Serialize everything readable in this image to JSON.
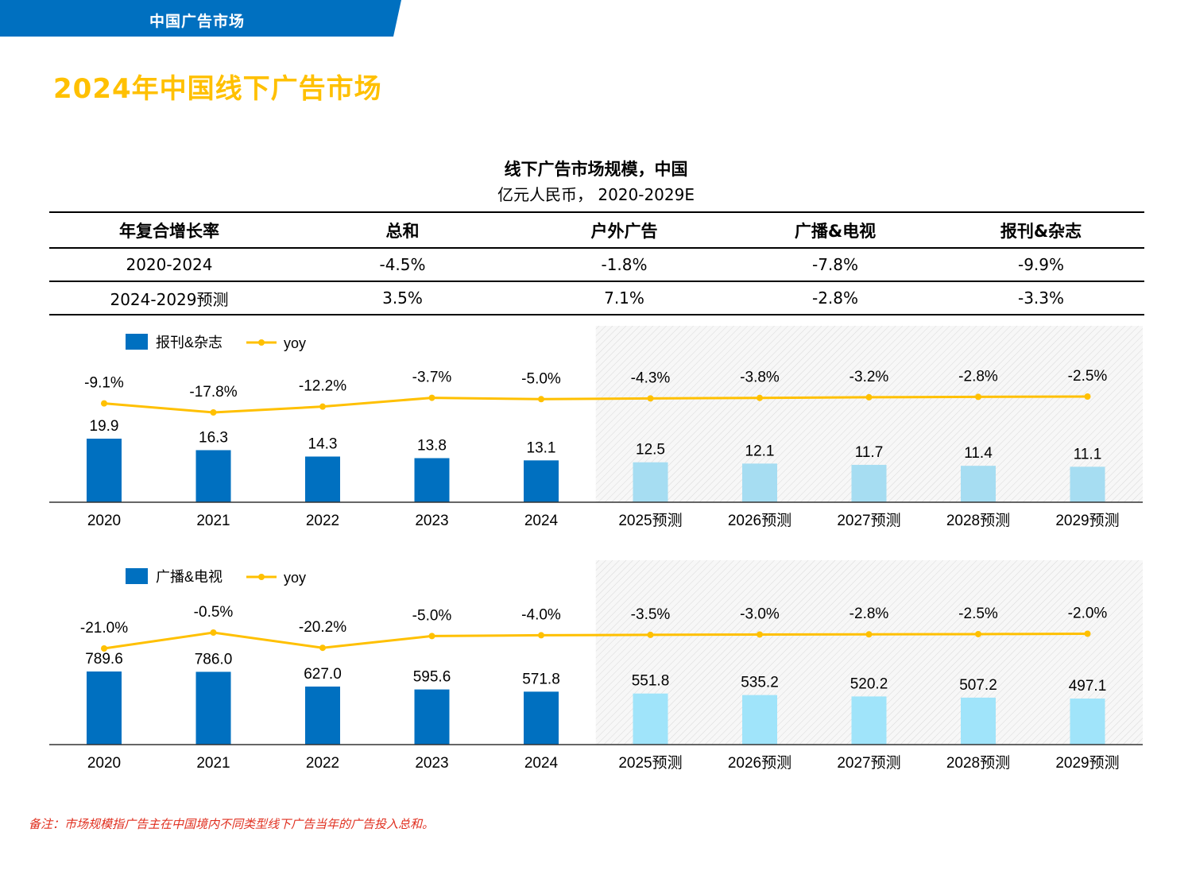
{
  "header": {
    "tab_label": "中国广告市场",
    "page_title": "2024年中国线下广告市场"
  },
  "colors": {
    "tab_blue": "#0070C0",
    "title_gold": "#FFC000",
    "actual_bar": "#0070C0",
    "forecast_bar": "#A6DDF2",
    "forecast_bar_2": "#A0E4FA",
    "yoy_line": "#FFC000",
    "footnote": "#E03020"
  },
  "chart_title": "线下广告市场规模，中国",
  "chart_subtitle": "亿元人民币， 2020-2029E",
  "cagr_table": {
    "headers": [
      "年复合增长率",
      "总和",
      "户外广告",
      "广播&电视",
      "报刊&杂志"
    ],
    "rows": [
      [
        "2020-2024",
        "-4.5%",
        "-1.8%",
        "-7.8%",
        "-9.9%"
      ],
      [
        "2024-2029预测",
        "3.5%",
        "7.1%",
        "-2.8%",
        "-3.3%"
      ]
    ]
  },
  "chart_data": [
    {
      "type": "bar",
      "categories": [
        "2020",
        "2021",
        "2022",
        "2023",
        "2024",
        "2025预测",
        "2026预测",
        "2027预测",
        "2028预测",
        "2029预测"
      ],
      "series": [
        {
          "name": "报刊&杂志",
          "values": [
            19.9,
            16.3,
            14.3,
            13.8,
            13.1,
            12.5,
            12.1,
            11.7,
            11.4,
            11.1
          ],
          "labels": [
            "19.9",
            "16.3",
            "14.3",
            "13.8",
            "13.1",
            "12.5",
            "12.1",
            "11.7",
            "11.4",
            "11.1"
          ]
        },
        {
          "name": "yoy",
          "type": "line",
          "values": [
            -9.1,
            -17.8,
            -12.2,
            -3.7,
            -5.0,
            -4.3,
            -3.8,
            -3.2,
            -2.8,
            -2.5
          ],
          "labels": [
            "-9.1%",
            "-17.8%",
            "-12.2%",
            "-3.7%",
            "-5.0%",
            "-4.3%",
            "-3.8%",
            "-3.2%",
            "-2.8%",
            "-2.5%"
          ]
        }
      ],
      "forecast_start_index": 5,
      "legend": "top-left"
    },
    {
      "type": "bar",
      "categories": [
        "2020",
        "2021",
        "2022",
        "2023",
        "2024",
        "2025预测",
        "2026预测",
        "2027预测",
        "2028预测",
        "2029预测"
      ],
      "series": [
        {
          "name": "广播&电视",
          "values": [
            789.6,
            786.0,
            627.0,
            595.6,
            571.8,
            551.8,
            535.2,
            520.2,
            507.2,
            497.1
          ],
          "labels": [
            "789.6",
            "786.0",
            "627.0",
            "595.6",
            "571.8",
            "551.8",
            "535.2",
            "520.2",
            "507.2",
            "497.1"
          ]
        },
        {
          "name": "yoy",
          "type": "line",
          "values": [
            -21.0,
            -0.5,
            -20.2,
            -5.0,
            -4.0,
            -3.5,
            -3.0,
            -2.8,
            -2.5,
            -2.0
          ],
          "labels": [
            "-21.0%",
            "-0.5%",
            "-20.2%",
            "-5.0%",
            "-4.0%",
            "-3.5%",
            "-3.0%",
            "-2.8%",
            "-2.5%",
            "-2.0%"
          ]
        }
      ],
      "forecast_start_index": 5,
      "legend": "top-left"
    }
  ],
  "footnote": "备注：市场规模指广告主在中国境内不同类型线下广告当年的广告投入总和。"
}
